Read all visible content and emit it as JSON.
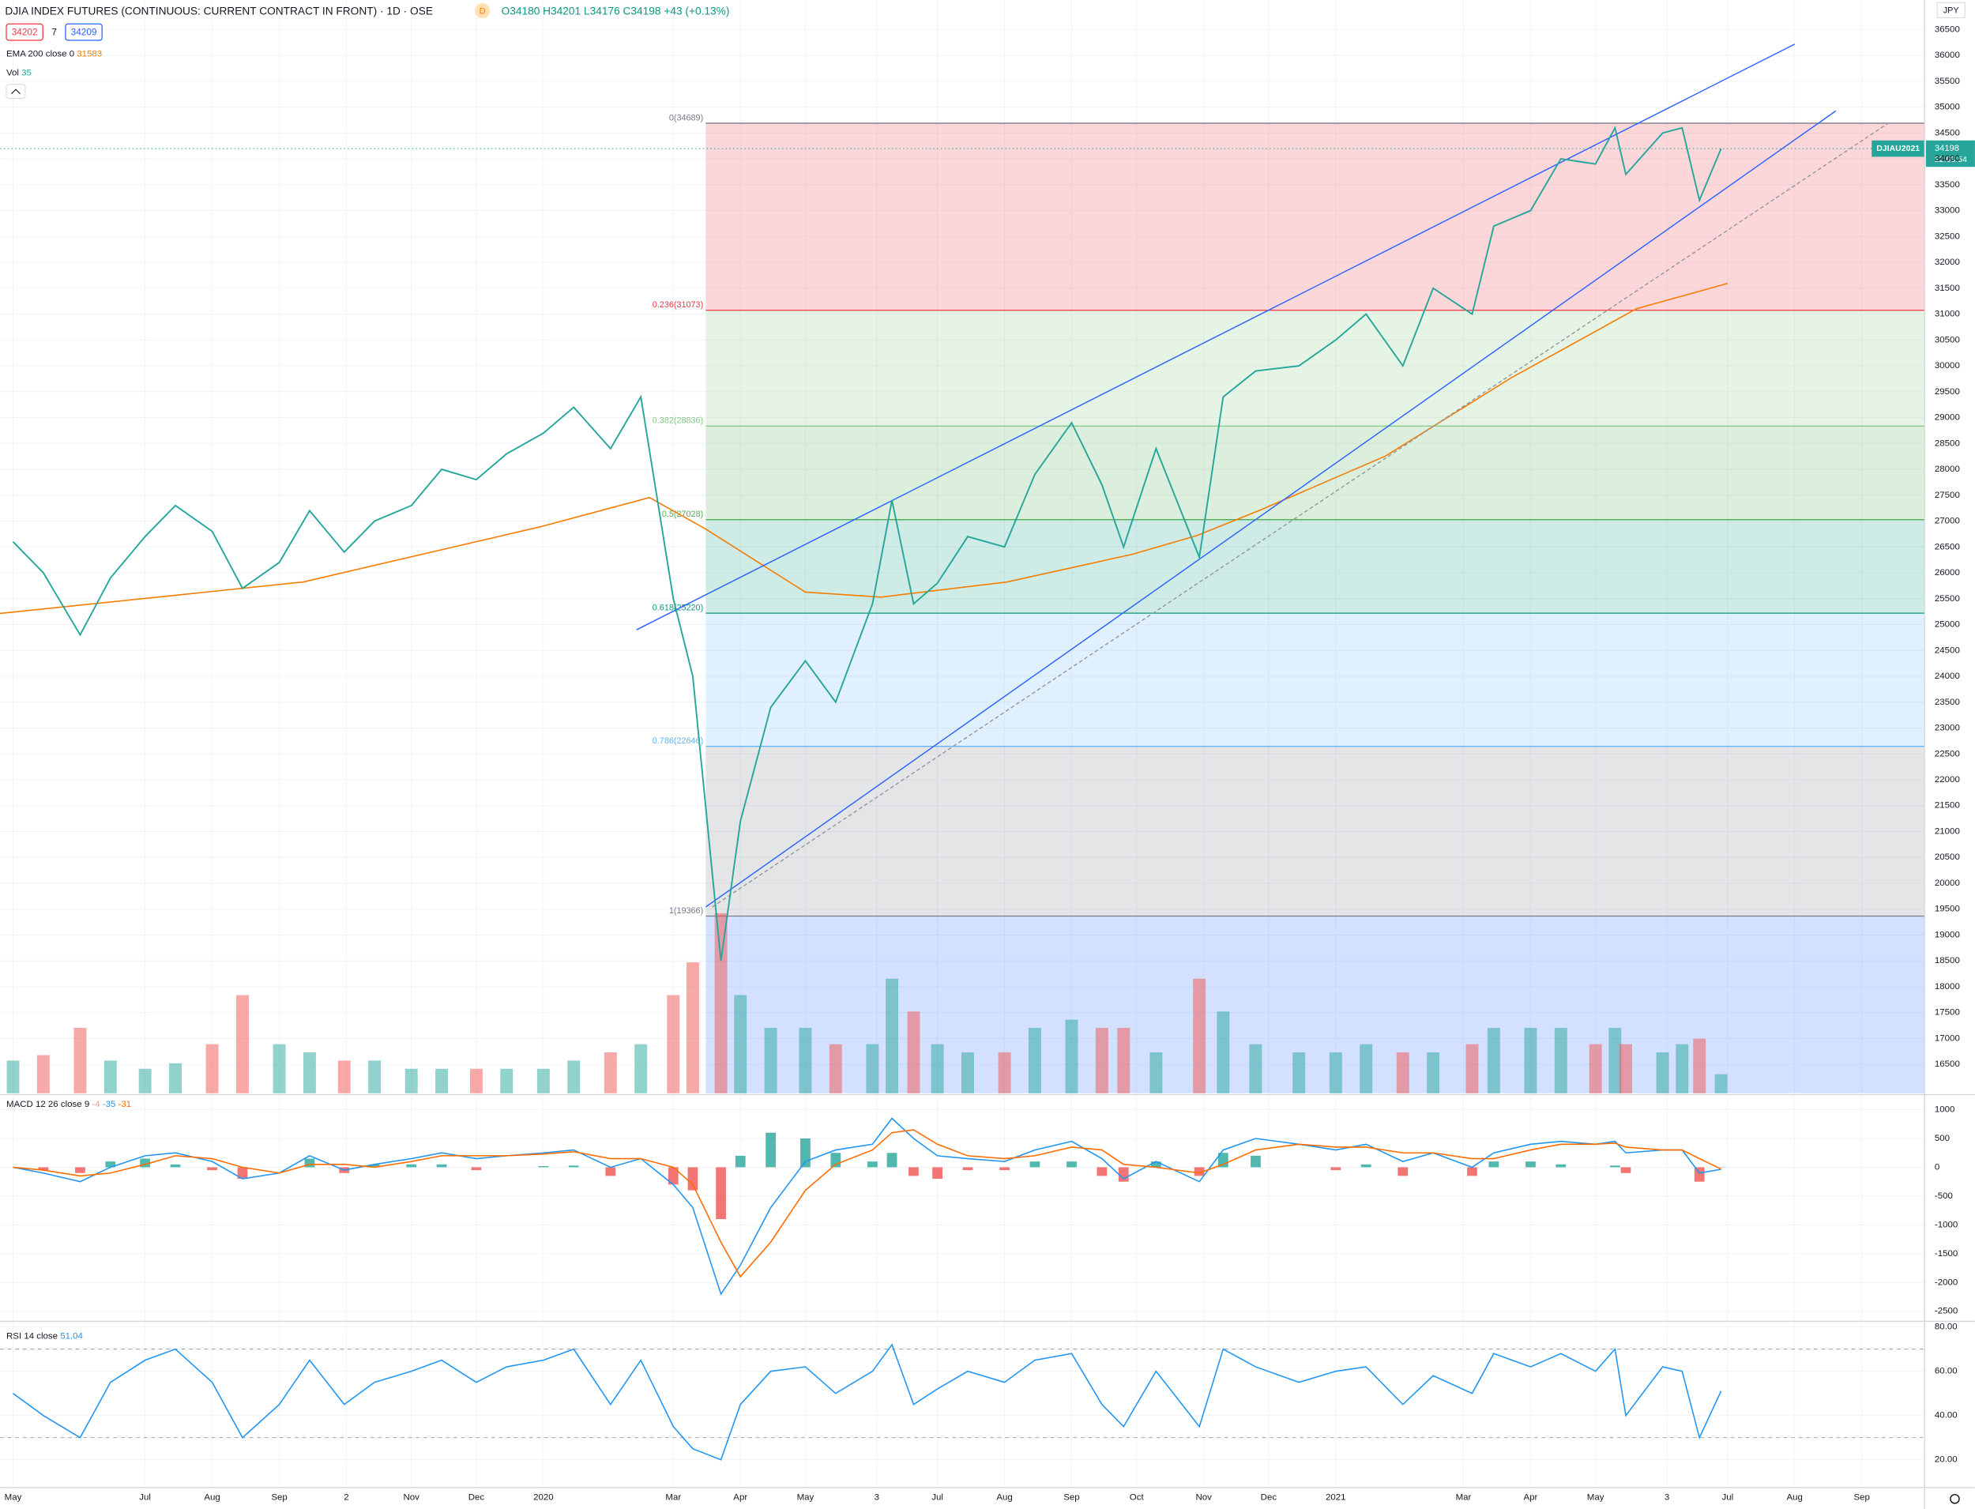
{
  "header": {
    "symbol": "DJIA INDEX FUTURES (CONTINUOUS: CURRENT CONTRACT IN FRONT) · 1D · OSE",
    "badge": "D",
    "open": "O34180",
    "high": "H34201",
    "low": "L34176",
    "close": "C34198",
    "change": "+43 (+0.13%)",
    "sell": "34202",
    "spread": "7",
    "buy": "34209",
    "currency": "JPY"
  },
  "indicators": {
    "ema": {
      "label": "EMA 200 close 0",
      "value": 31583
    },
    "vol": {
      "label": "Vol",
      "value": 35
    },
    "macd": {
      "label": "MACD 12 26 close 9",
      "hist": -4,
      "macd": -35,
      "signal": -31
    },
    "rsi": {
      "label": "RSI 14 close",
      "value": 51.04
    }
  },
  "price_tag": {
    "symbol": "DJIAU2021",
    "price": 34198,
    "time": "22:03:54"
  },
  "chart_data": [
    {
      "type": "line",
      "xlim": [
        "2019-04-25",
        "2021-09-30"
      ],
      "xticks": [
        {
          "value": "2019-05-01",
          "label": "May"
        },
        {
          "value": "2019-07-01",
          "label": "Jul"
        },
        {
          "value": "2019-08-01",
          "label": "Aug"
        },
        {
          "value": "2019-09-01",
          "label": "Sep"
        },
        {
          "value": "2019-10-02",
          "label": "2"
        },
        {
          "value": "2019-11-01",
          "label": "Nov"
        },
        {
          "value": "2019-12-01",
          "label": "Dec"
        },
        {
          "value": "2020-01-01",
          "label": "2020"
        },
        {
          "value": "2020-03-01",
          "label": "Mar"
        },
        {
          "value": "2020-04-01",
          "label": "Apr"
        },
        {
          "value": "2020-05-01",
          "label": "May"
        },
        {
          "value": "2020-06-03",
          "label": "3"
        },
        {
          "value": "2020-07-01",
          "label": "Jul"
        },
        {
          "value": "2020-08-01",
          "label": "Aug"
        },
        {
          "value": "2020-09-01",
          "label": "Sep"
        },
        {
          "value": "2020-10-01",
          "label": "Oct"
        },
        {
          "value": "2020-11-01",
          "label": "Nov"
        },
        {
          "value": "2020-12-01",
          "label": "Dec"
        },
        {
          "value": "2021-01-01",
          "label": "2021"
        },
        {
          "value": "2021-03-01",
          "label": "Mar"
        },
        {
          "value": "2021-04-01",
          "label": "Apr"
        },
        {
          "value": "2021-05-01",
          "label": "May"
        },
        {
          "value": "2021-06-03",
          "label": "3"
        },
        {
          "value": "2021-07-01",
          "label": "Jul"
        },
        {
          "value": "2021-08-01",
          "label": "Aug"
        },
        {
          "value": "2021-09-01",
          "label": "Sep"
        }
      ],
      "ylim": [
        15940,
        37070
      ],
      "yticks": [
        16500,
        17000,
        17500,
        18000,
        18500,
        19000,
        19500,
        20000,
        20500,
        21000,
        21500,
        22000,
        22500,
        23000,
        23500,
        24000,
        24500,
        25000,
        25500,
        26000,
        26500,
        27000,
        27500,
        28000,
        28500,
        29000,
        29500,
        30000,
        30500,
        31000,
        31500,
        32000,
        32500,
        33000,
        33500,
        34000,
        34500,
        35000,
        35500,
        36000,
        36500
      ],
      "grid": true,
      "x": [
        "2019-05-01",
        "2019-05-15",
        "2019-06-01",
        "2019-06-15",
        "2019-07-01",
        "2019-07-15",
        "2019-08-01",
        "2019-08-15",
        "2019-09-01",
        "2019-09-15",
        "2019-10-01",
        "2019-10-15",
        "2019-11-01",
        "2019-11-15",
        "2019-12-01",
        "2019-12-15",
        "2020-01-01",
        "2020-01-15",
        "2020-02-01",
        "2020-02-15",
        "2020-03-01",
        "2020-03-10",
        "2020-03-23",
        "2020-04-01",
        "2020-04-15",
        "2020-05-01",
        "2020-05-15",
        "2020-06-01",
        "2020-06-10",
        "2020-06-20",
        "2020-07-01",
        "2020-07-15",
        "2020-08-01",
        "2020-08-15",
        "2020-09-01",
        "2020-09-15",
        "2020-09-25",
        "2020-10-10",
        "2020-10-30",
        "2020-11-10",
        "2020-11-25",
        "2020-12-15",
        "2021-01-01",
        "2021-01-15",
        "2021-02-01",
        "2021-02-15",
        "2021-03-05",
        "2021-03-15",
        "2021-04-01",
        "2021-04-15",
        "2021-05-01",
        "2021-05-10",
        "2021-05-15",
        "2021-06-01",
        "2021-06-10",
        "2021-06-18",
        "2021-06-28"
      ],
      "series": [
        {
          "color": "#26a69a",
          "values": [
            26600,
            26000,
            24800,
            25900,
            26700,
            27300,
            26800,
            25700,
            26200,
            27200,
            26400,
            27000,
            27300,
            28000,
            27800,
            28300,
            28700,
            29200,
            28400,
            29400,
            25500,
            24000,
            18500,
            21200,
            23400,
            24300,
            23500,
            25400,
            27400,
            25400,
            25800,
            26700,
            26500,
            27900,
            28900,
            27700,
            26500,
            28400,
            26300,
            29400,
            29900,
            30000,
            30500,
            31000,
            30000,
            31500,
            31000,
            32700,
            33000,
            34000,
            33900,
            34600,
            33700,
            34500,
            34600,
            33200,
            34198
          ]
        }
      ],
      "ema": {
        "color": "#f57c00",
        "x": [
          "2019-04-25",
          "2019-09-12",
          "2019-12-31",
          "2020-02-19",
          "2020-03-16",
          "2020-05-01",
          "2020-06-05",
          "2020-08-02",
          "2020-09-29",
          "2020-10-29",
          "2020-11-27",
          "2021-01-24",
          "2021-03-23",
          "2021-05-20",
          "2021-07-01"
        ],
        "values": [
          25214,
          25822,
          26894,
          27454,
          26845,
          25627,
          25530,
          25822,
          26357,
          26722,
          27210,
          28257,
          29766,
          31105,
          31592
        ]
      },
      "volume": {
        "vlim": [
          0,
          600
        ],
        "up_color": "#26a69a",
        "down_color": "#ef5350",
        "values": [
          60,
          70,
          120,
          60,
          45,
          55,
          90,
          180,
          90,
          75,
          60,
          60,
          45,
          45,
          45,
          45,
          45,
          60,
          75,
          90,
          180,
          240,
          330,
          180,
          120,
          120,
          90,
          90,
          210,
          150,
          90,
          75,
          75,
          120,
          135,
          120,
          120,
          75,
          210,
          150,
          90,
          75,
          75,
          90,
          75,
          75,
          90,
          120,
          120,
          120,
          90,
          120,
          90,
          75,
          90,
          100,
          35
        ]
      },
      "fib": {
        "start": "2020-03-16",
        "extend_color": "#2962ff",
        "levels": [
          {
            "label": "0(34689)",
            "price": 34689,
            "color": "#787b86"
          },
          {
            "label": "0.236(31073)",
            "price": 31073,
            "color": "#f23645"
          },
          {
            "label": "0.382(28836)",
            "price": 28836,
            "color": "#81c784"
          },
          {
            "label": "0.5(27028)",
            "price": 27028,
            "color": "#4caf50"
          },
          {
            "label": "0.618(25220)",
            "price": 25220,
            "color": "#089981"
          },
          {
            "label": "0.786(22646)",
            "price": 22646,
            "color": "#64b5f6"
          },
          {
            "label": "1(19366)",
            "price": 19366,
            "color": "#787b86"
          }
        ]
      },
      "trendlines": [
        {
          "points": [
            [
              "2020-02-13",
              24898
            ],
            [
              "2021-08-01",
              36217
            ]
          ],
          "color": "#2962ff",
          "dashed": false
        },
        {
          "points": [
            [
              "2020-03-16",
              19542
            ],
            [
              "2021-08-20",
              34927
            ]
          ],
          "color": "#2962ff",
          "dashed": false
        },
        {
          "points": [
            [
              "2020-03-19",
              19542
            ],
            [
              "2021-09-13",
              34684
            ]
          ],
          "color": "#9598a1",
          "dashed": true
        }
      ]
    },
    {
      "type": "macd",
      "ylim": [
        -2653,
        1240
      ],
      "yticks": [
        1000,
        500,
        0,
        -500,
        -1000,
        -1500,
        -2000,
        -2500
      ],
      "series": [
        {
          "color": "#2196f3",
          "values": [
            0,
            -100,
            -250,
            0,
            200,
            250,
            100,
            -200,
            -100,
            200,
            -50,
            50,
            150,
            250,
            150,
            200,
            250,
            300,
            0,
            150,
            -300,
            -700,
            -2200,
            -1700,
            -700,
            100,
            300,
            400,
            850,
            500,
            200,
            150,
            100,
            300,
            450,
            150,
            -200,
            100,
            -250,
            300,
            500,
            400,
            300,
            400,
            100,
            250,
            0,
            250,
            400,
            450,
            400,
            450,
            250,
            300,
            300,
            -100,
            -35
          ]
        },
        {
          "color": "#ff6d00",
          "values": [
            0,
            -50,
            -150,
            -100,
            50,
            200,
            150,
            0,
            -100,
            50,
            50,
            0,
            100,
            200,
            200,
            200,
            230,
            270,
            150,
            150,
            0,
            -300,
            -1300,
            -1900,
            -1300,
            -400,
            50,
            300,
            600,
            650,
            400,
            200,
            150,
            200,
            350,
            300,
            50,
            0,
            -100,
            50,
            300,
            400,
            350,
            350,
            250,
            250,
            150,
            150,
            300,
            400,
            400,
            420,
            350,
            300,
            300,
            150,
            -31
          ]
        }
      ],
      "histogram": {
        "up_color": "#26a69a",
        "down_color": "#ef5350",
        "values": [
          0,
          -50,
          -100,
          100,
          150,
          50,
          -50,
          -200,
          0,
          150,
          -100,
          50,
          50,
          50,
          -50,
          0,
          20,
          30,
          -150,
          0,
          -300,
          -400,
          -900,
          200,
          600,
          500,
          250,
          100,
          250,
          -150,
          -200,
          -50,
          -50,
          100,
          100,
          -150,
          -250,
          100,
          -150,
          250,
          200,
          0,
          -50,
          50,
          -150,
          0,
          -150,
          100,
          100,
          50,
          0,
          30,
          -100,
          0,
          0,
          -250,
          -4
        ]
      }
    },
    {
      "type": "rsi",
      "ylim": [
        8,
        82
      ],
      "yticks": [
        {
          "value": 80,
          "label": "80.00"
        },
        {
          "value": 60,
          "label": "60.00"
        },
        {
          "value": 40,
          "label": "40.00"
        },
        {
          "value": 20,
          "label": "20.00"
        }
      ],
      "bands": [
        70,
        30
      ],
      "series": [
        {
          "color": "#2196f3",
          "values": [
            50,
            40,
            30,
            55,
            65,
            70,
            55,
            30,
            45,
            65,
            45,
            55,
            60,
            65,
            55,
            62,
            65,
            70,
            45,
            65,
            35,
            25,
            20,
            45,
            60,
            62,
            50,
            60,
            72,
            45,
            52,
            60,
            55,
            65,
            68,
            45,
            35,
            60,
            35,
            70,
            62,
            55,
            60,
            62,
            45,
            58,
            50,
            68,
            62,
            68,
            60,
            70,
            40,
            62,
            60,
            30,
            51.04
          ]
        }
      ]
    }
  ]
}
